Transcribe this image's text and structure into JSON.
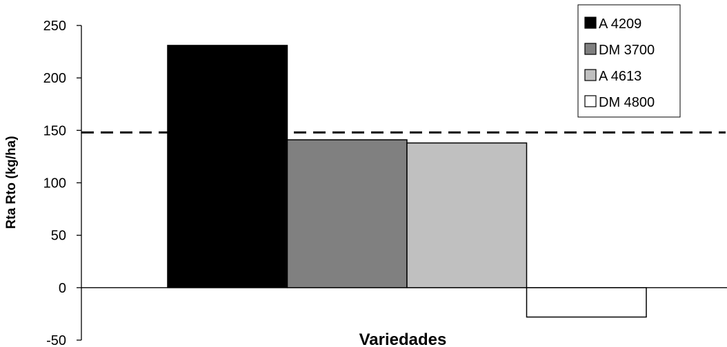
{
  "chart_data": {
    "type": "bar",
    "xlabel": "Variedades",
    "ylabel": "Rta Rto (kg/ha)",
    "ylim": [
      -50,
      250
    ],
    "yticks": [
      "250",
      "200",
      "150",
      "100",
      "50",
      "0",
      "-50"
    ],
    "grid": false,
    "legend_position": "top-right",
    "reference_line": {
      "value": 148,
      "style": "dashed"
    },
    "series": [
      {
        "name": "A 4209",
        "value": 231,
        "color": "#000000"
      },
      {
        "name": "DM 3700",
        "value": 141,
        "color": "#808080"
      },
      {
        "name": "A 4613",
        "value": 138,
        "color": "#c0c0c0"
      },
      {
        "name": "DM 4800",
        "value": -28,
        "color": "#ffffff"
      }
    ]
  }
}
